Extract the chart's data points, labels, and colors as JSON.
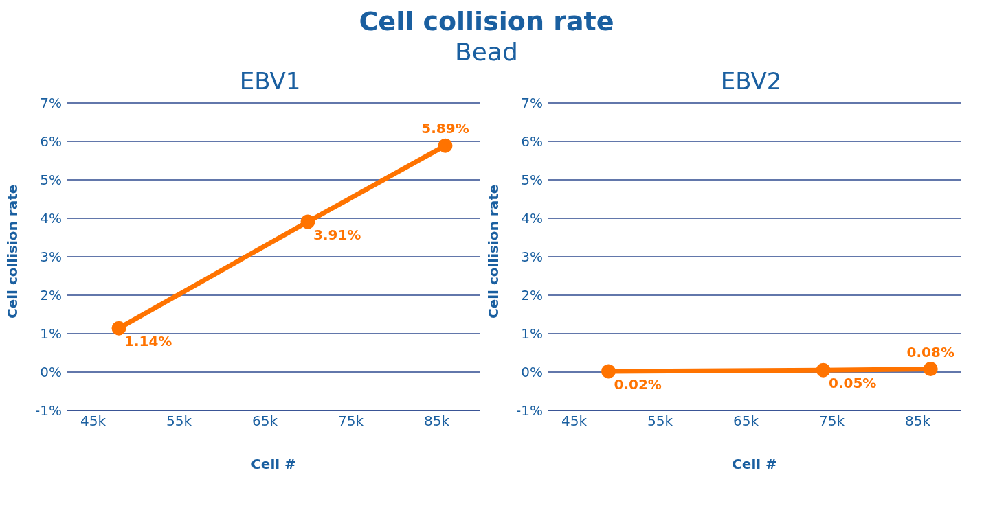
{
  "chart_data": [
    {
      "type": "other",
      "title": "Cell collision rate",
      "subtitle": "Bead"
    },
    {
      "type": "line",
      "title": "EBV1",
      "xlabel": "Cell #",
      "ylabel": "Cell collision rate",
      "x": [
        48000,
        70000,
        86000
      ],
      "series": [
        {
          "color": "#ff7300",
          "values": [
            1.14,
            3.91,
            5.89
          ],
          "value_labels": [
            "1.14%",
            "3.91%",
            "5.89%"
          ]
        }
      ],
      "xlim": [
        42000,
        90000
      ],
      "xticks": [
        {
          "value": 45000,
          "label": "45k"
        },
        {
          "value": 55000,
          "label": "55k"
        },
        {
          "value": 65000,
          "label": "65k"
        },
        {
          "value": 75000,
          "label": "75k"
        },
        {
          "value": 85000,
          "label": "85k"
        }
      ],
      "ylim": [
        -1,
        7
      ],
      "yticks": [
        {
          "value": -1,
          "label": "-1%"
        },
        {
          "value": 0,
          "label": "0%"
        },
        {
          "value": 1,
          "label": "1%"
        },
        {
          "value": 2,
          "label": "2%"
        },
        {
          "value": 3,
          "label": "3%"
        },
        {
          "value": 4,
          "label": "4%"
        },
        {
          "value": 5,
          "label": "5%"
        },
        {
          "value": 6,
          "label": "6%"
        },
        {
          "value": 7,
          "label": "7%"
        }
      ],
      "grid": "y",
      "marker": "circle",
      "legend": false
    },
    {
      "type": "line",
      "title": "EBV2",
      "xlabel": "Cell #",
      "ylabel": "Cell collision rate",
      "x": [
        49000,
        74000,
        86500
      ],
      "series": [
        {
          "color": "#ff7300",
          "values": [
            0.02,
            0.05,
            0.08
          ],
          "value_labels": [
            "0.02%",
            "0.05%",
            "0.08%"
          ]
        }
      ],
      "xlim": [
        42000,
        90000
      ],
      "xticks": [
        {
          "value": 45000,
          "label": "45k"
        },
        {
          "value": 55000,
          "label": "55k"
        },
        {
          "value": 65000,
          "label": "65k"
        },
        {
          "value": 75000,
          "label": "75k"
        },
        {
          "value": 85000,
          "label": "85k"
        }
      ],
      "ylim": [
        -1,
        7
      ],
      "yticks": [
        {
          "value": -1,
          "label": "-1%"
        },
        {
          "value": 0,
          "label": "0%"
        },
        {
          "value": 1,
          "label": "1%"
        },
        {
          "value": 2,
          "label": "2%"
        },
        {
          "value": 3,
          "label": "3%"
        },
        {
          "value": 4,
          "label": "4%"
        },
        {
          "value": 5,
          "label": "5%"
        },
        {
          "value": 6,
          "label": "6%"
        },
        {
          "value": 7,
          "label": "7%"
        }
      ],
      "grid": "y",
      "marker": "circle",
      "legend": false
    }
  ]
}
